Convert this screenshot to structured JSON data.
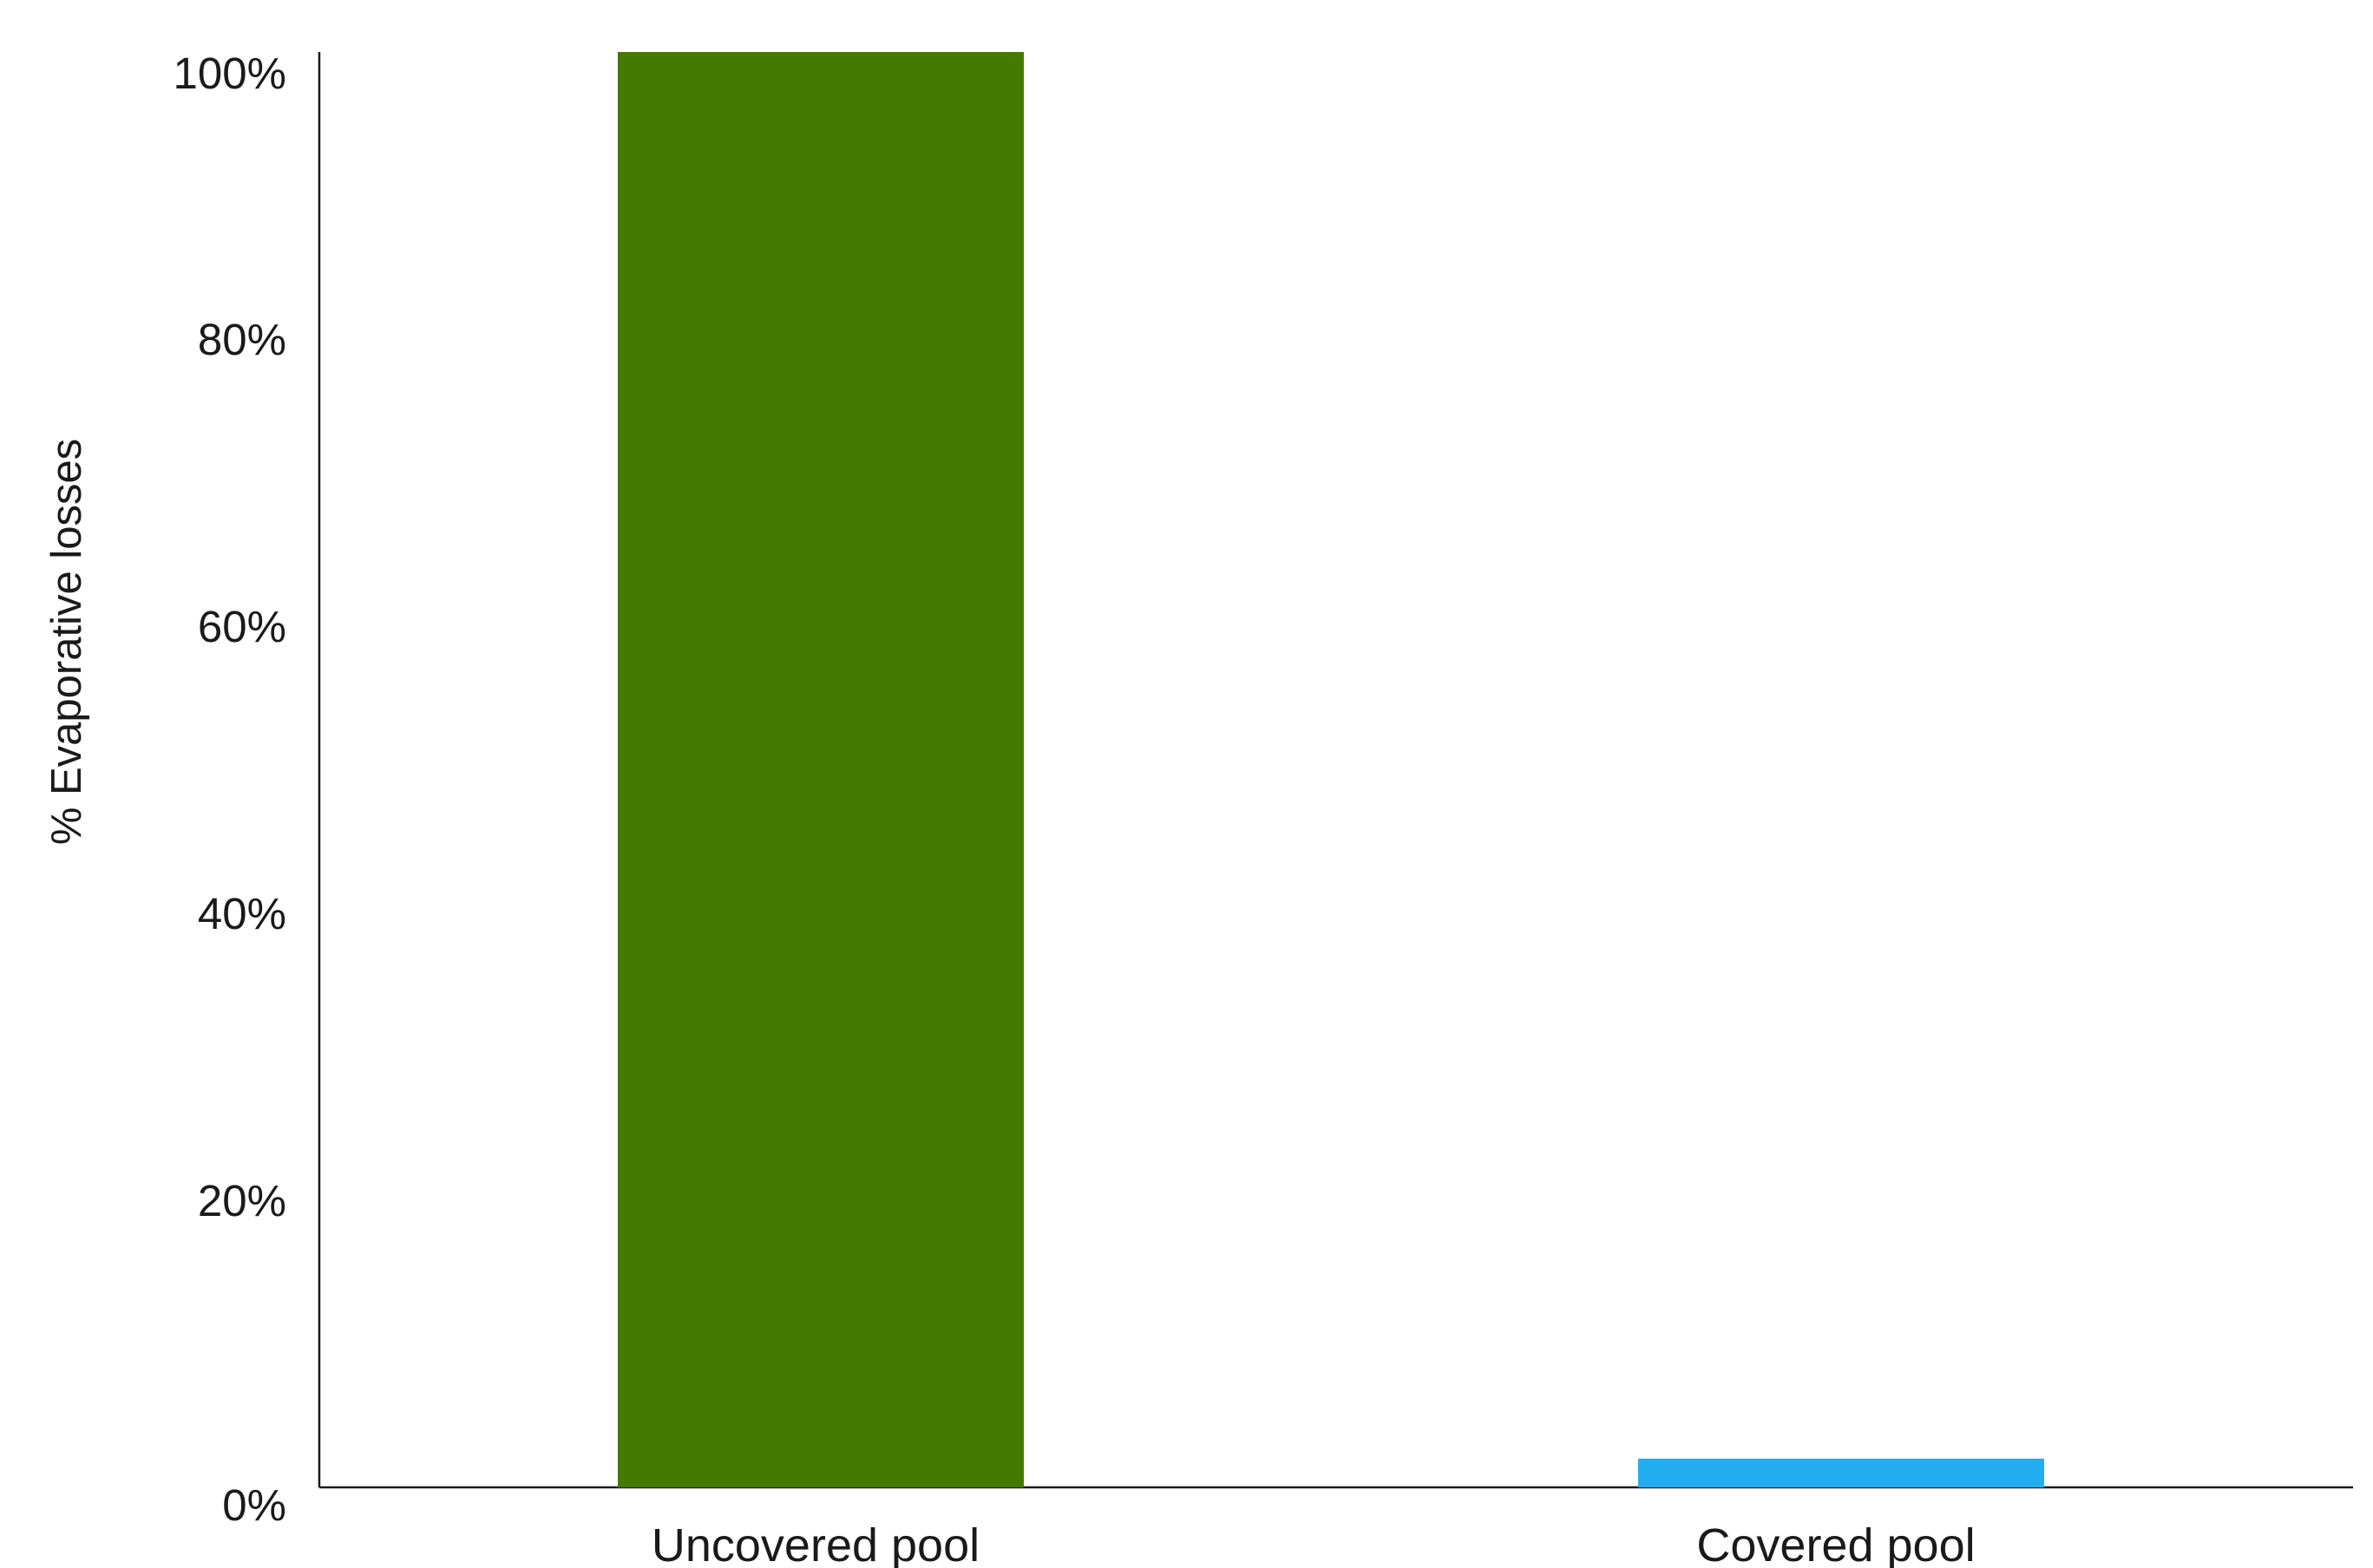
{
  "chart_data": {
    "type": "bar",
    "categories": [
      "Uncovered pool",
      "Covered pool"
    ],
    "values": [
      100,
      2
    ],
    "ylabel": "% Evaporative losses",
    "xlabel": "",
    "ylim": [
      0,
      100
    ],
    "yticks": [
      "0%",
      "20%",
      "40%",
      "60%",
      "80%",
      "100%"
    ],
    "ytick_values": [
      0,
      20,
      40,
      60,
      80,
      100
    ],
    "colors": [
      "#457a00",
      "#22adf0"
    ],
    "grid": false,
    "legend": "none"
  }
}
